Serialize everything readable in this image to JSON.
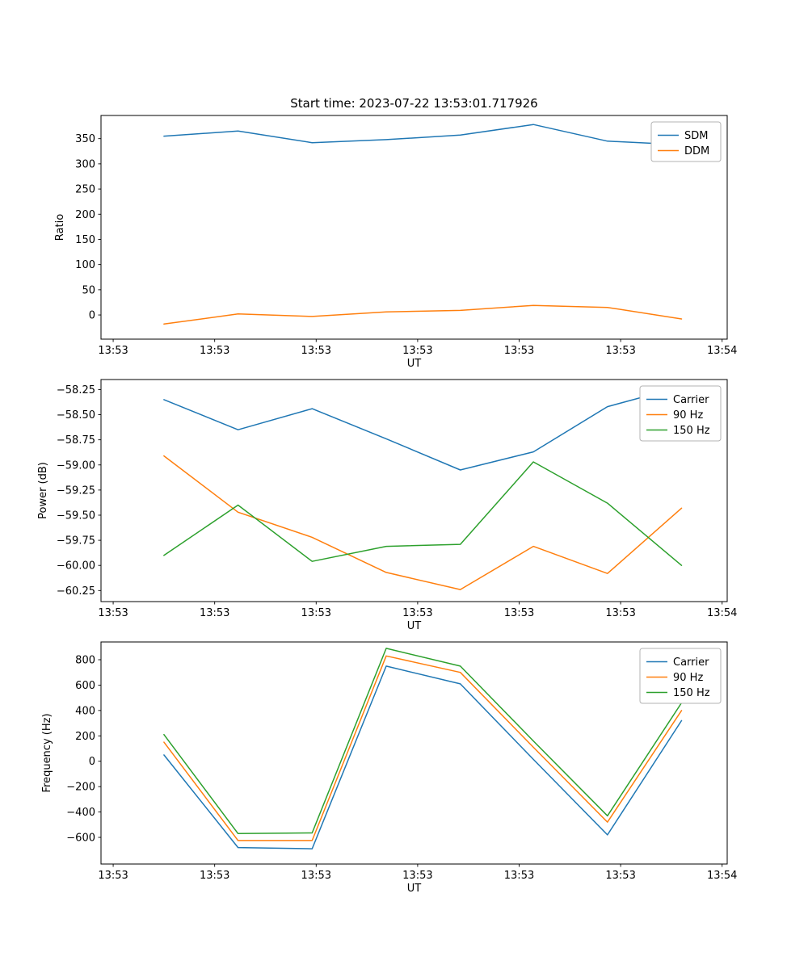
{
  "figure": {
    "background": "#ffffff"
  },
  "chart_data": [
    {
      "type": "line",
      "title": "Start time: 2023-07-22 13:53:01.717926",
      "xlabel": "UT",
      "ylabel": "Ratio",
      "legend_position": "upper right",
      "grid": false,
      "x_unit": "seconds after 13:53:00",
      "xlim": [
        -1.2,
        60.5
      ],
      "ylim": [
        -48,
        396
      ],
      "x_ticks": [
        0,
        10,
        20,
        30,
        40,
        50,
        60
      ],
      "x_tick_labels": [
        "13:53",
        "13:53",
        "13:53",
        "13:53",
        "13:53",
        "13:53",
        "13:54"
      ],
      "y_ticks": [
        0,
        50,
        100,
        150,
        200,
        250,
        300,
        350
      ],
      "y_tick_labels": [
        "0",
        "50",
        "100",
        "150",
        "200",
        "250",
        "300",
        "350"
      ],
      "x": [
        5,
        12.3,
        19.6,
        26.9,
        34.2,
        41.4,
        48.7,
        56
      ],
      "series": [
        {
          "name": "SDM",
          "color": "#1f77b4",
          "values": [
            355,
            365,
            342,
            348,
            357,
            378,
            345,
            338
          ]
        },
        {
          "name": "DDM",
          "color": "#ff7f0e",
          "values": [
            -18,
            2,
            -3,
            6,
            9,
            19,
            15,
            -8
          ]
        }
      ]
    },
    {
      "type": "line",
      "title": "",
      "xlabel": "UT",
      "ylabel": "Power (dB)",
      "legend_position": "upper right",
      "grid": false,
      "x_unit": "seconds after 13:53:00",
      "xlim": [
        -1.2,
        60.5
      ],
      "ylim": [
        -60.36,
        -58.15
      ],
      "x_ticks": [
        0,
        10,
        20,
        30,
        40,
        50,
        60
      ],
      "x_tick_labels": [
        "13:53",
        "13:53",
        "13:53",
        "13:53",
        "13:53",
        "13:53",
        "13:54"
      ],
      "y_ticks": [
        -60.25,
        -60.0,
        -59.75,
        -59.5,
        -59.25,
        -59.0,
        -58.75,
        -58.5,
        -58.25
      ],
      "y_tick_labels": [
        "−60.25",
        "−60.00",
        "−59.75",
        "−59.50",
        "−59.25",
        "−59.00",
        "−58.75",
        "−58.50",
        "−58.25"
      ],
      "x": [
        5,
        12.3,
        19.6,
        26.9,
        34.2,
        41.4,
        48.7,
        56
      ],
      "series": [
        {
          "name": "Carrier",
          "color": "#1f77b4",
          "values": [
            -58.35,
            -58.65,
            -58.44,
            -58.74,
            -59.05,
            -58.87,
            -58.42,
            -58.22
          ]
        },
        {
          "name": "90 Hz",
          "color": "#ff7f0e",
          "values": [
            -58.91,
            -59.47,
            -59.72,
            -60.07,
            -60.24,
            -59.81,
            -60.08,
            -59.43
          ]
        },
        {
          "name": "150 Hz",
          "color": "#2ca02c",
          "values": [
            -59.9,
            -59.4,
            -59.96,
            -59.81,
            -59.79,
            -58.97,
            -59.38,
            -60.0
          ]
        }
      ]
    },
    {
      "type": "line",
      "title": "",
      "xlabel": "UT",
      "ylabel": "Frequency (Hz)",
      "legend_position": "upper right",
      "grid": false,
      "x_unit": "seconds after 13:53:00",
      "xlim": [
        -1.2,
        60.5
      ],
      "ylim": [
        -810,
        940
      ],
      "x_ticks": [
        0,
        10,
        20,
        30,
        40,
        50,
        60
      ],
      "x_tick_labels": [
        "13:53",
        "13:53",
        "13:53",
        "13:53",
        "13:53",
        "13:53",
        "13:54"
      ],
      "y_ticks": [
        -600,
        -400,
        -200,
        0,
        200,
        400,
        600,
        800
      ],
      "y_tick_labels": [
        "−600",
        "−400",
        "−200",
        "0",
        "200",
        "400",
        "600",
        "800"
      ],
      "x": [
        5,
        12.3,
        19.6,
        26.9,
        34.2,
        41.4,
        48.7,
        56
      ],
      "series": [
        {
          "name": "Carrier",
          "color": "#1f77b4",
          "values": [
            50,
            -680,
            -690,
            750,
            610,
            15,
            -580,
            320
          ]
        },
        {
          "name": "90 Hz",
          "color": "#ff7f0e",
          "values": [
            150,
            -625,
            -625,
            830,
            700,
            110,
            -480,
            400
          ]
        },
        {
          "name": "150 Hz",
          "color": "#2ca02c",
          "values": [
            210,
            -570,
            -565,
            890,
            750,
            160,
            -430,
            460
          ]
        }
      ]
    }
  ]
}
